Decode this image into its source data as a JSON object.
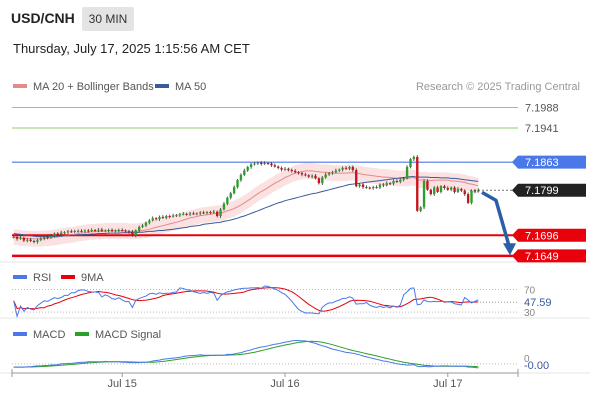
{
  "header": {
    "symbol": "USD/CNH",
    "interval": "30 MIN",
    "timestamp": "Thursday, July 17, 2025 1:15:56 AM CET"
  },
  "colors": {
    "bull": "#2aa02a",
    "bear": "#c8141e",
    "ma20": "#e48a8a",
    "ma50": "#3a5a9a",
    "bollinger_fill": "#fbe1e1",
    "resistance_blue": "#4a78e8",
    "target_green": "#8fce72",
    "support_red": "#e8000b",
    "arrow": "#2a5fa8",
    "rsi": "#4a78e8",
    "rsi_ma": "#e8000b",
    "macd": "#4a78e8",
    "macd_signal": "#2aa02a"
  },
  "chart_data": [
    {
      "panel": "price",
      "type": "candlestick",
      "legend": [
        {
          "label": "MA 20 + Bollinger Bands",
          "color_key": "ma20"
        },
        {
          "label": "MA 50",
          "color_key": "ma50"
        }
      ],
      "watermark": "Research © 2025 Trading Central",
      "ylim": [
        7.1635,
        7.2005
      ],
      "x_ticks": [
        {
          "index": 32,
          "label": "Jul 15"
        },
        {
          "index": 80,
          "label": "Jul 16"
        },
        {
          "index": 128,
          "label": "Jul 17"
        }
      ],
      "levels": [
        {
          "value": 7.1988,
          "label": "7.1988",
          "style": "target"
        },
        {
          "value": 7.1941,
          "label": "7.1941",
          "style": "target"
        },
        {
          "value": 7.1863,
          "label": "7.1863",
          "style": "resistance"
        },
        {
          "value": 7.1799,
          "label": "7.1799",
          "style": "last"
        },
        {
          "value": 7.1696,
          "label": "7.1696",
          "style": "support"
        },
        {
          "value": 7.1649,
          "label": "7.1649",
          "style": "support2"
        }
      ],
      "forecast_arrow": {
        "from": 7.1794,
        "to": 7.1655
      },
      "close": [
        7.1692,
        7.1688,
        7.169,
        7.1684,
        7.1686,
        7.1683,
        7.1681,
        7.1685,
        7.1688,
        7.1692,
        7.1691,
        7.1695,
        7.17,
        7.1698,
        7.1702,
        7.1703,
        7.1705,
        7.1704,
        7.1706,
        7.1706,
        7.1705,
        7.1707,
        7.1706,
        7.1708,
        7.1707,
        7.1709,
        7.1706,
        7.1707,
        7.1708,
        7.1706,
        7.1707,
        7.1708,
        7.1707,
        7.1705,
        7.1704,
        7.1695,
        7.1707,
        7.1715,
        7.1718,
        7.1725,
        7.173,
        7.1735,
        7.1733,
        7.1738,
        7.1736,
        7.174,
        7.1739,
        7.1741,
        7.1742,
        7.1744,
        7.1745,
        7.1744,
        7.1746,
        7.1745,
        7.1746,
        7.1748,
        7.1747,
        7.1749,
        7.1748,
        7.175,
        7.174,
        7.1755,
        7.1768,
        7.1782,
        7.1792,
        7.1806,
        7.1822,
        7.1834,
        7.1844,
        7.1852,
        7.1858,
        7.186,
        7.1862,
        7.1859,
        7.1861,
        7.186,
        7.1856,
        7.1853,
        7.185,
        7.1846,
        7.1848,
        7.1845,
        7.1843,
        7.184,
        7.1838,
        7.1835,
        7.1833,
        7.183,
        7.1832,
        7.1826,
        7.1815,
        7.1828,
        7.1835,
        7.1838,
        7.184,
        7.1844,
        7.1846,
        7.185,
        7.1848,
        7.1852,
        7.1845,
        7.1808,
        7.1812,
        7.1806,
        7.1805,
        7.1804,
        7.1806,
        7.1805,
        7.1812,
        7.181,
        7.1815,
        7.1814,
        7.182,
        7.1818,
        7.1823,
        7.1826,
        7.1852,
        7.187,
        7.1875,
        7.1752,
        7.176,
        7.182,
        7.18,
        7.179,
        7.1805,
        7.1795,
        7.1808,
        7.1804,
        7.18,
        7.1805,
        7.1795,
        7.1802,
        7.1798,
        7.179,
        7.177,
        7.1798,
        7.1796,
        7.1799
      ],
      "ma20": [
        7.1692,
        7.1691,
        7.169,
        7.1689,
        7.1689,
        7.1688,
        7.1688,
        7.1688,
        7.1688,
        7.1689,
        7.1689,
        7.169,
        7.1691,
        7.1692,
        7.1694,
        7.1695,
        7.1696,
        7.1697,
        7.1698,
        7.17,
        7.1701,
        7.1702,
        7.1703,
        7.1704,
        7.1704,
        7.1705,
        7.1705,
        7.1706,
        7.1706,
        7.1706,
        7.1706,
        7.1706,
        7.1706,
        7.1706,
        7.1705,
        7.1705,
        7.1705,
        7.1706,
        7.1707,
        7.1708,
        7.171,
        7.1712,
        7.1714,
        7.1716,
        7.1718,
        7.172,
        7.1722,
        7.1724,
        7.1726,
        7.1728,
        7.1731,
        7.1733,
        7.1736,
        7.1737,
        7.1739,
        7.1741,
        7.1742,
        7.1743,
        7.1744,
        7.1745,
        7.1746,
        7.1747,
        7.1749,
        7.1752,
        7.1754,
        7.1757,
        7.1761,
        7.1765,
        7.177,
        7.1775,
        7.178,
        7.1786,
        7.1791,
        7.1796,
        7.18,
        7.1805,
        7.181,
        7.1815,
        7.1819,
        7.1823,
        7.1828,
        7.1831,
        7.1835,
        7.1838,
        7.184,
        7.1841,
        7.1843,
        7.1843,
        7.1843,
        7.1842,
        7.1841,
        7.184,
        7.184,
        7.1839,
        7.1838,
        7.1838,
        7.1838,
        7.1838,
        7.1838,
        7.1839,
        7.1839,
        7.1838,
        7.1837,
        7.1835,
        7.1834,
        7.1833,
        7.1832,
        7.1831,
        7.183,
        7.1829,
        7.1829,
        7.1828,
        7.1827,
        7.1826,
        7.1826,
        7.1826,
        7.1826,
        7.1827,
        7.1828,
        7.1823,
        7.1822,
        7.1823,
        7.1822,
        7.1821,
        7.1822,
        7.1822,
        7.1822,
        7.1822,
        7.1822,
        7.182,
        7.182,
        7.1819,
        7.1818,
        7.1817,
        7.1814,
        7.1813,
        7.1811,
        7.1809
      ],
      "ma50": [
        7.17,
        7.1699,
        7.1698,
        7.1697,
        7.1696,
        7.1695,
        7.1694,
        7.1693,
        7.1693,
        7.1693,
        7.1693,
        7.1693,
        7.1694,
        7.1694,
        7.1694,
        7.1695,
        7.1695,
        7.1696,
        7.1696,
        7.1697,
        7.1697,
        7.1698,
        7.1698,
        7.1699,
        7.1699,
        7.17,
        7.17,
        7.17,
        7.1701,
        7.1701,
        7.1701,
        7.1701,
        7.1702,
        7.1702,
        7.1702,
        7.1702,
        7.1702,
        7.1703,
        7.1703,
        7.1704,
        7.1705,
        7.1705,
        7.1706,
        7.1707,
        7.1707,
        7.1708,
        7.1709,
        7.171,
        7.1711,
        7.1712,
        7.1713,
        7.1714,
        7.1716,
        7.1717,
        7.1718,
        7.1719,
        7.1721,
        7.1722,
        7.1723,
        7.1724,
        7.1725,
        7.1726,
        7.1728,
        7.1729,
        7.1731,
        7.1733,
        7.1735,
        7.1738,
        7.174,
        7.1743,
        7.1746,
        7.1749,
        7.1752,
        7.1755,
        7.1758,
        7.1761,
        7.1764,
        7.1767,
        7.177,
        7.1772,
        7.1775,
        7.1777,
        7.1779,
        7.1781,
        7.1783,
        7.1785,
        7.1787,
        7.1789,
        7.1791,
        7.1792,
        7.1794,
        7.1796,
        7.1798,
        7.18,
        7.1802,
        7.1804,
        7.1806,
        7.1808,
        7.181,
        7.1812,
        7.1813,
        7.1814,
        7.1815,
        7.1816,
        7.1817,
        7.1818,
        7.1819,
        7.182,
        7.1821,
        7.1822,
        7.1823,
        7.1824,
        7.1825,
        7.1826,
        7.1827,
        7.1828,
        7.1829,
        7.183,
        7.183,
        7.1829,
        7.1829,
        7.1829,
        7.1829,
        7.1828,
        7.1828,
        7.1828,
        7.1827,
        7.1827,
        7.1827,
        7.1826,
        7.1826,
        7.1825,
        7.1824,
        7.1823,
        7.1822,
        7.1821,
        7.182,
        7.1819
      ],
      "band_width": 0.0018
    },
    {
      "panel": "rsi",
      "type": "line",
      "legend": [
        {
          "label": "RSI",
          "color_key": "rsi"
        },
        {
          "label": "9MA",
          "color_key": "rsi_ma"
        }
      ],
      "ylim": [
        25,
        78
      ],
      "ref_levels": [
        {
          "value": 70,
          "label": "70"
        },
        {
          "value": 30,
          "label": "30"
        }
      ],
      "last_value": 47.59,
      "last_label": "47.59"
    },
    {
      "panel": "macd",
      "type": "line",
      "legend": [
        {
          "label": "MACD",
          "color_key": "macd"
        },
        {
          "label": "MACD Signal",
          "color_key": "macd_signal"
        }
      ],
      "ylim": [
        -0.0012,
        0.0032
      ],
      "ref_levels": [
        {
          "value": 0,
          "label": "0"
        }
      ],
      "last_label": "-0.00"
    }
  ]
}
